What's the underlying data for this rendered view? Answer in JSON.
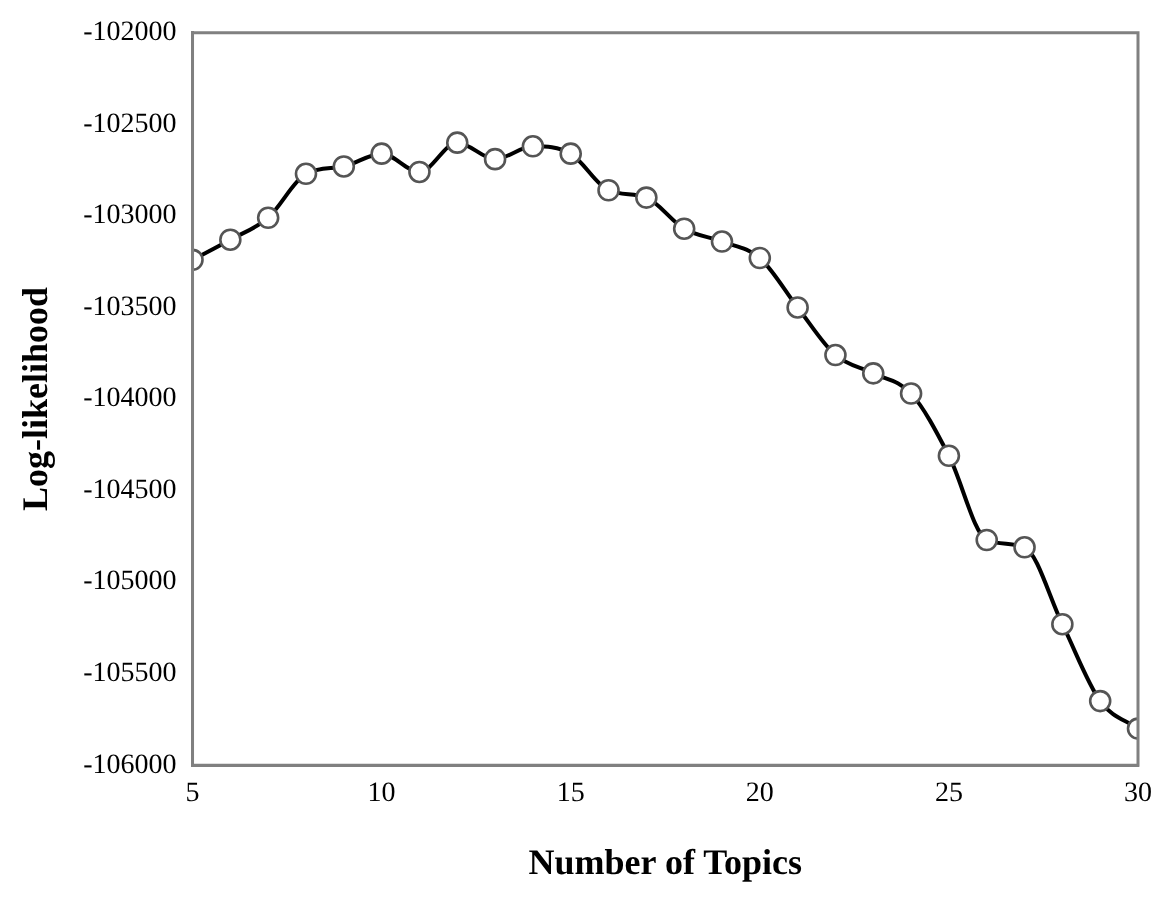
{
  "chart_data": {
    "type": "line",
    "xlabel": "Number of Topics",
    "ylabel": "Log-likelihood",
    "x": [
      5,
      6,
      7,
      8,
      9,
      10,
      11,
      12,
      13,
      14,
      15,
      16,
      17,
      18,
      19,
      20,
      21,
      22,
      23,
      24,
      25,
      26,
      27,
      28,
      29,
      30
    ],
    "series": [
      {
        "color": "#000000",
        "values": [
          -103240,
          -103130,
          -103010,
          -102770,
          -102730,
          -102660,
          -102760,
          -102600,
          -102690,
          -102620,
          -102660,
          -102860,
          -102900,
          -103070,
          -103140,
          -103230,
          -103500,
          -103760,
          -103860,
          -103970,
          -104310,
          -104770,
          -104810,
          -105230,
          -105650,
          -105800
        ]
      }
    ],
    "xlim": [
      5,
      30
    ],
    "xticks": [
      5,
      10,
      15,
      20,
      25,
      30
    ],
    "ylim": [
      -106000,
      -102000
    ],
    "yticks": [
      -106000,
      -105500,
      -105000,
      -104500,
      -104000,
      -103500,
      -103000,
      -102500,
      -102000
    ],
    "grid": false,
    "legend": false,
    "marker": "circle",
    "line_style": "solid"
  }
}
